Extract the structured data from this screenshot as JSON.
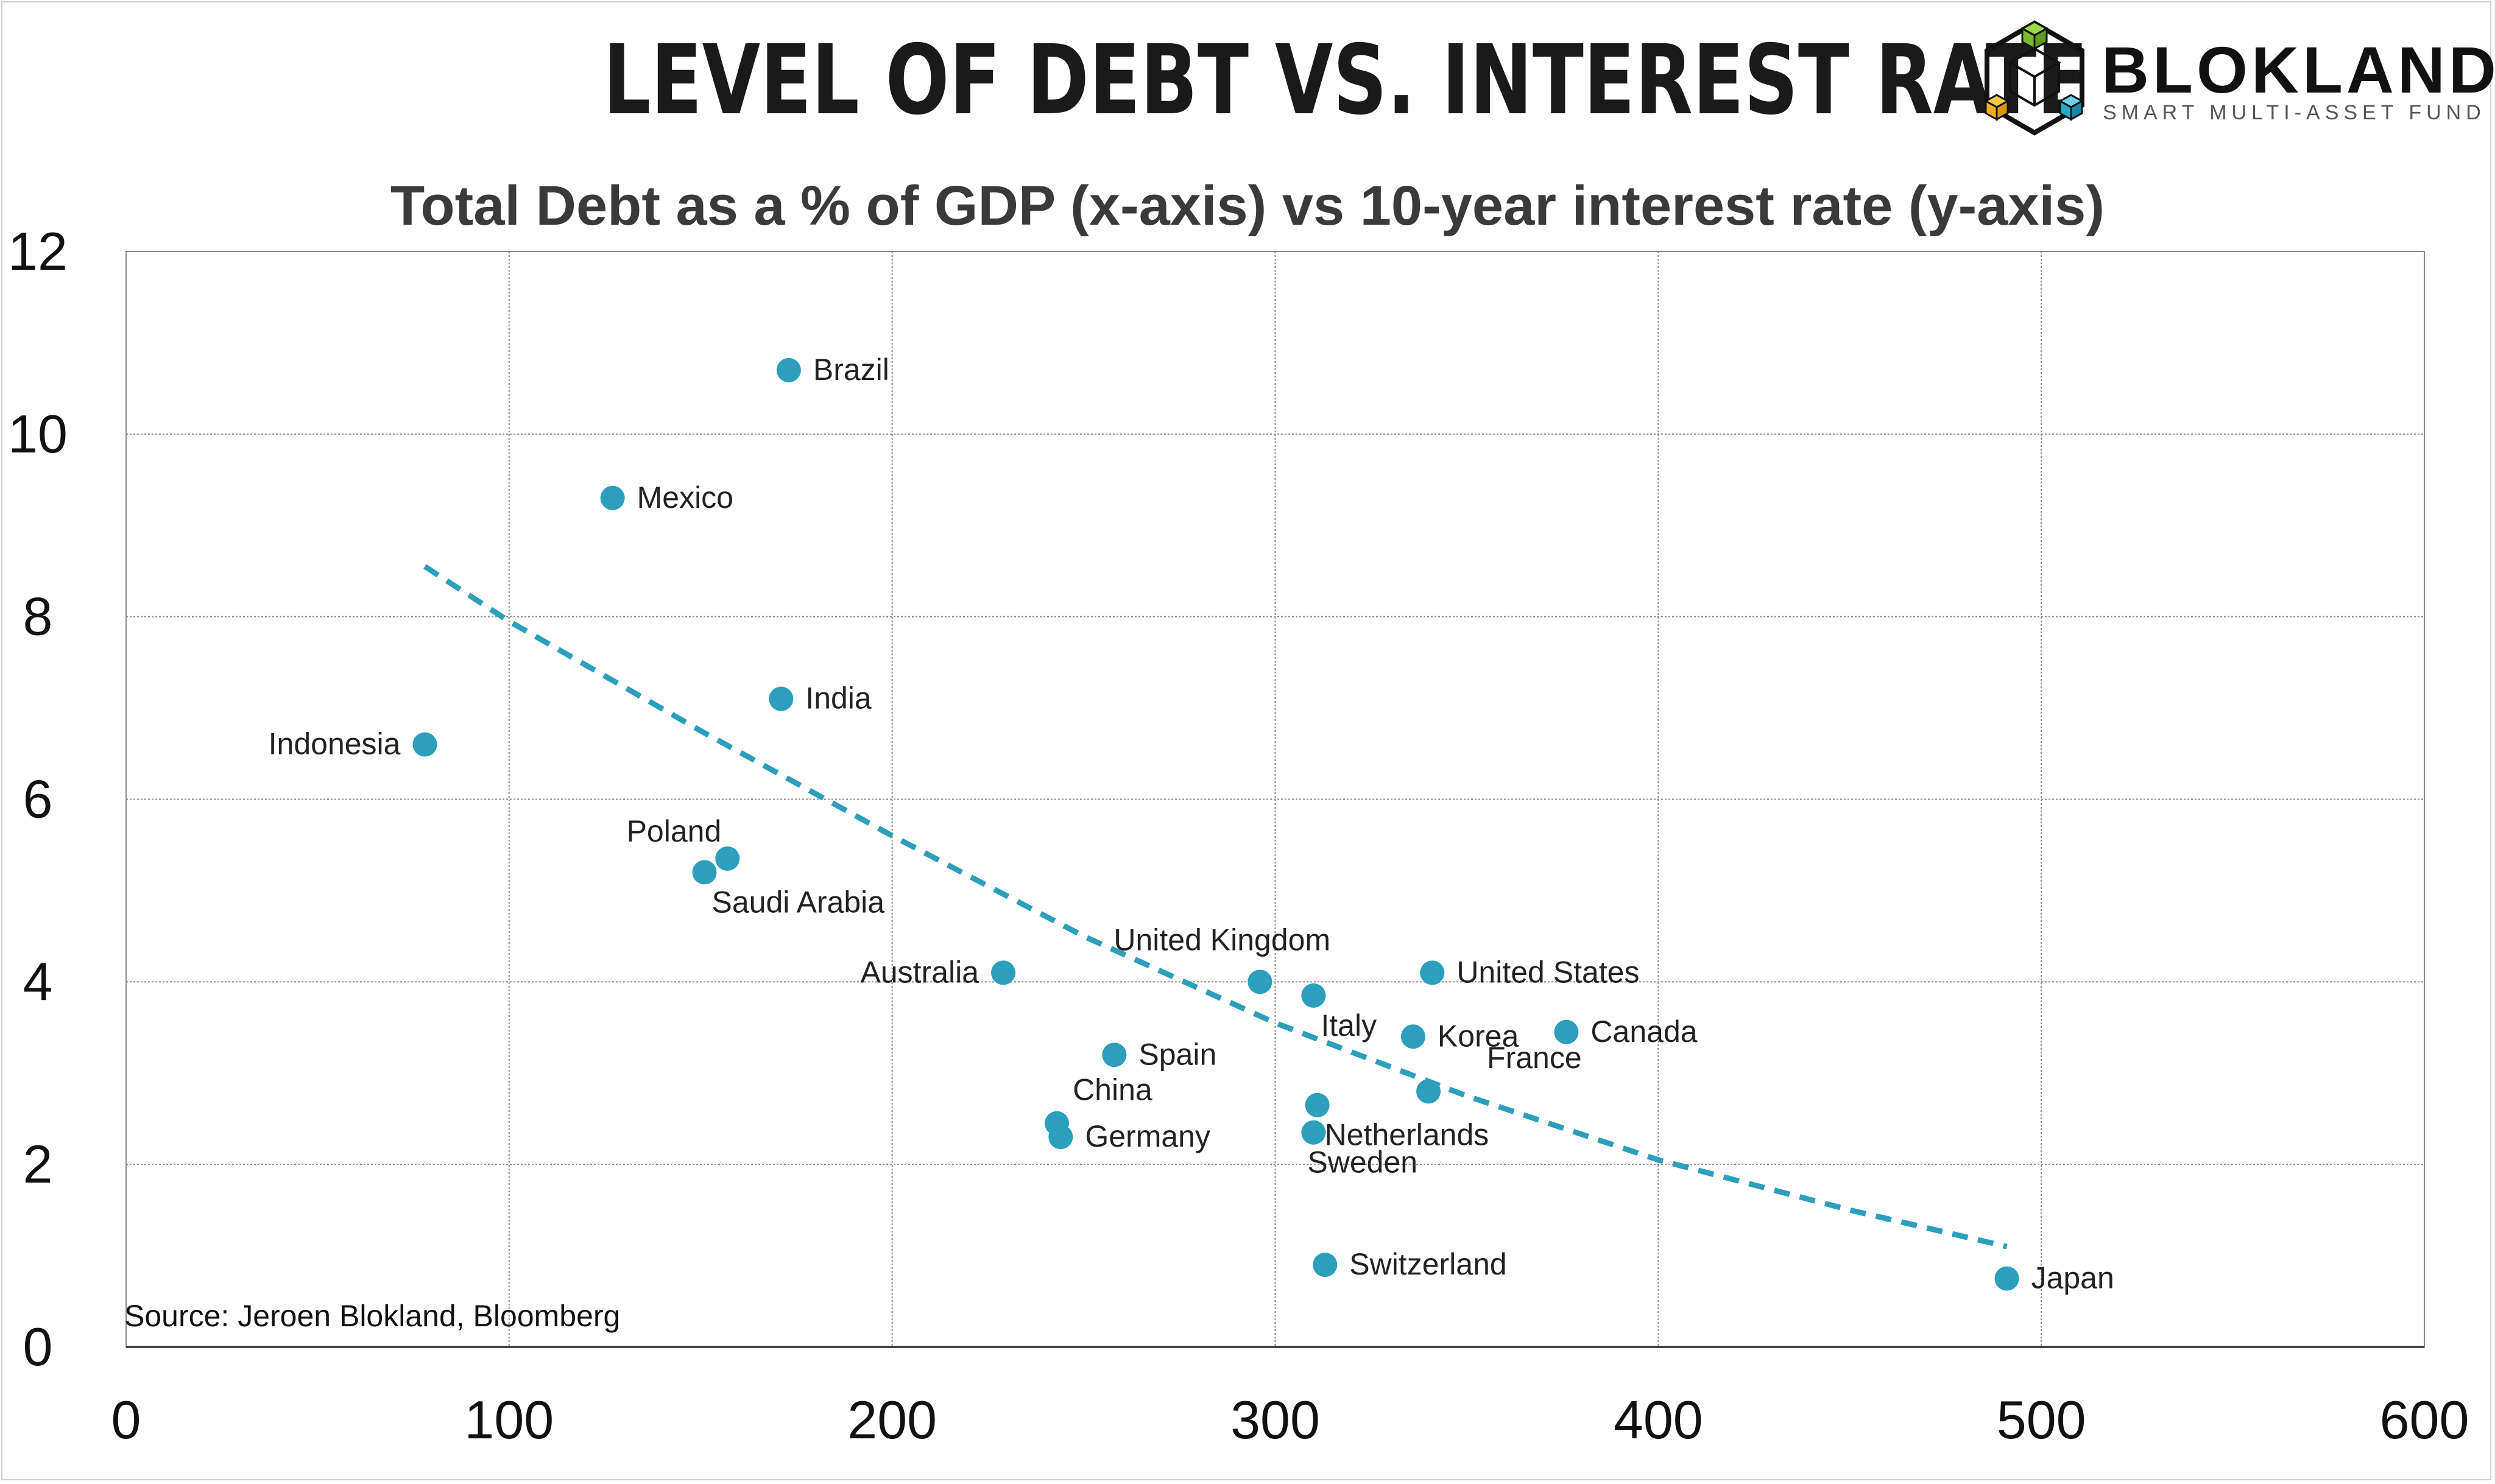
{
  "title": "LEVEL OF DEBT VS. INTEREST RATE",
  "brand": {
    "name": "BLOKLAND",
    "tagline": "SMART MULTI-ASSET FUND"
  },
  "colors": {
    "point": "#2b9fbc",
    "trend": "#2b9fbc",
    "grid": "#8a8a8a",
    "text": "#222222"
  },
  "chart_data": {
    "type": "scatter",
    "title": "Total Debt as a % of GDP (x-axis) vs 10-year interest rate (y-axis)",
    "xlabel": "",
    "ylabel": "",
    "xlim": [
      0,
      600
    ],
    "ylim": [
      0,
      12
    ],
    "xticks": [
      "0",
      "100",
      "200",
      "300",
      "400",
      "500",
      "600"
    ],
    "yticks": [
      "0",
      "2",
      "4",
      "6",
      "8",
      "10",
      "12"
    ],
    "grid": true,
    "source": "Source: Jeroen Blokland, Bloomberg",
    "points": [
      {
        "label": "Brazil",
        "x": 173,
        "y": 10.7,
        "anchor": "right"
      },
      {
        "label": "Mexico",
        "x": 127,
        "y": 9.3,
        "anchor": "right"
      },
      {
        "label": "India",
        "x": 171,
        "y": 7.1,
        "anchor": "right"
      },
      {
        "label": "Indonesia",
        "x": 78,
        "y": 6.6,
        "anchor": "left"
      },
      {
        "label": "Poland",
        "x": 157,
        "y": 5.35,
        "anchor": "above-left"
      },
      {
        "label": "Saudi Arabia",
        "x": 151,
        "y": 5.2,
        "anchor": "below-right"
      },
      {
        "label": "Australia",
        "x": 229,
        "y": 4.1,
        "anchor": "left"
      },
      {
        "label": "United Kingdom",
        "x": 296,
        "y": 4.0,
        "anchor": "above"
      },
      {
        "label": "Italy",
        "x": 310,
        "y": 3.85,
        "anchor": "below-right"
      },
      {
        "label": "United States",
        "x": 341,
        "y": 4.1,
        "anchor": "right"
      },
      {
        "label": "Korea",
        "x": 336,
        "y": 3.4,
        "anchor": "right"
      },
      {
        "label": "Canada",
        "x": 376,
        "y": 3.45,
        "anchor": "right"
      },
      {
        "label": "Spain",
        "x": 258,
        "y": 3.2,
        "anchor": "right"
      },
      {
        "label": "France",
        "x": 340,
        "y": 2.8,
        "anchor": "above-right"
      },
      {
        "label": "China",
        "x": 243,
        "y": 2.45,
        "anchor": "above-right"
      },
      {
        "label": "Germany",
        "x": 244,
        "y": 2.3,
        "anchor": "right"
      },
      {
        "label": "Netherlands",
        "x": 311,
        "y": 2.65,
        "anchor": "below-right"
      },
      {
        "label": "Sweden",
        "x": 310,
        "y": 2.35,
        "anchor": "below"
      },
      {
        "label": "Switzerland",
        "x": 313,
        "y": 0.9,
        "anchor": "right"
      },
      {
        "label": "Japan",
        "x": 491,
        "y": 0.75,
        "anchor": "right"
      }
    ],
    "trendline": {
      "style": "dashed",
      "points": [
        [
          78,
          8.55
        ],
        [
          100,
          7.95
        ],
        [
          150,
          6.75
        ],
        [
          200,
          5.6
        ],
        [
          250,
          4.5
        ],
        [
          300,
          3.55
        ],
        [
          350,
          2.75
        ],
        [
          400,
          2.05
        ],
        [
          450,
          1.5
        ],
        [
          491,
          1.1
        ]
      ]
    }
  }
}
